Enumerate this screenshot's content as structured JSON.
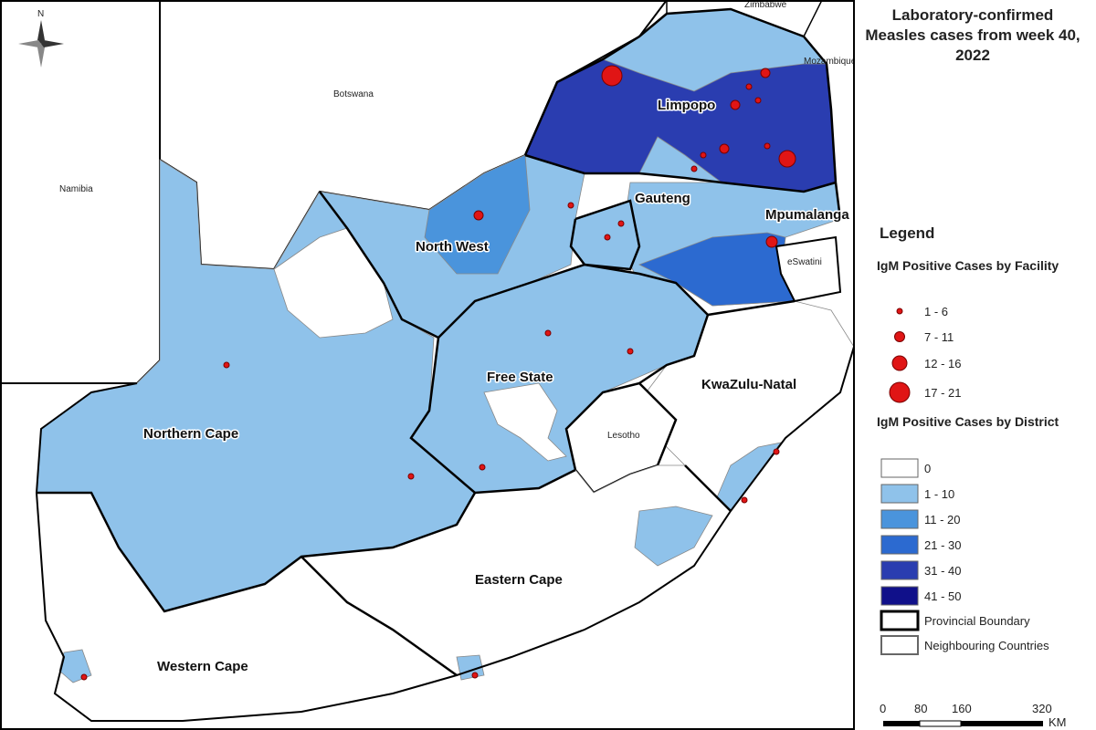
{
  "title": "Laboratory-confirmed Measles cases from week 40, 2022",
  "north": "N",
  "map_labels": {
    "zimbabwe": "Zimbabwe",
    "mozambique": "Mozambique",
    "botswana": "Botswana",
    "namibia": "Namibia",
    "eswatini": "eSwatini",
    "lesotho": "Lesotho",
    "limpopo": "Limpopo",
    "gauteng": "Gauteng",
    "mpumalanga": "Mpumalanga",
    "north_west": "North West",
    "free_state": "Free State",
    "kwazulu_natal": "KwaZulu-Natal",
    "northern_cape": "Northern Cape",
    "eastern_cape": "Eastern Cape",
    "western_cape": "Western Cape"
  },
  "legend": {
    "heading": "Legend",
    "facility": {
      "title": "IgM Positive Cases by Facility",
      "classes": [
        "1 - 6",
        "7 - 11",
        "12 - 16",
        "17 - 21"
      ]
    },
    "district": {
      "title": "IgM Positive Cases by District",
      "classes": [
        "0",
        "1 - 10",
        "11 - 20",
        "21 - 30",
        "31 - 40",
        "41 - 50"
      ]
    },
    "boundaries": [
      "Provincial Boundary",
      "Neighbouring Countries"
    ]
  },
  "scale": {
    "ticks": [
      "0",
      "80",
      "160",
      "320"
    ],
    "unit": "KM"
  }
}
